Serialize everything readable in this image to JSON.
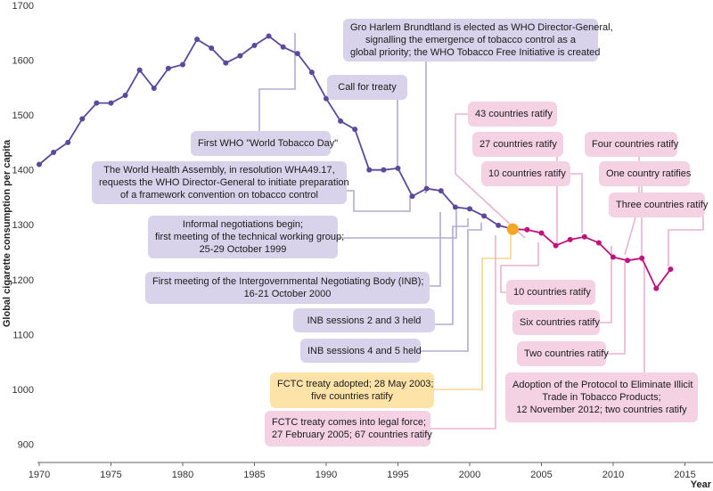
{
  "chart_data": {
    "type": "line",
    "ylabel": "Global cigarette consumption per capita",
    "xlabel": "Year",
    "xlim": [
      1970,
      2016
    ],
    "ylim": [
      850,
      1700
    ],
    "x_ticks": [
      "1970",
      "1975",
      "1980",
      "1985",
      "1990",
      "1995",
      "2000",
      "2005",
      "2010",
      "2015"
    ],
    "y_ticks": [
      "900",
      "1000",
      "1100",
      "1200",
      "1300",
      "1400",
      "1500",
      "1600",
      "1700"
    ],
    "grid": false,
    "series": [
      {
        "color": "#5b4a9b",
        "points": [
          [
            1970,
            1410
          ],
          [
            1971,
            1432
          ],
          [
            1972,
            1450
          ],
          [
            1973,
            1493
          ],
          [
            1974,
            1522
          ],
          [
            1975,
            1522
          ],
          [
            1976,
            1536
          ],
          [
            1977,
            1582
          ],
          [
            1978,
            1549
          ],
          [
            1979,
            1585
          ],
          [
            1980,
            1592
          ],
          [
            1981,
            1638
          ],
          [
            1982,
            1622
          ],
          [
            1983,
            1595
          ],
          [
            1984,
            1608
          ],
          [
            1985,
            1627
          ],
          [
            1986,
            1644
          ],
          [
            1987,
            1624
          ],
          [
            1988,
            1612
          ],
          [
            1989,
            1578
          ],
          [
            1990,
            1530
          ],
          [
            1991,
            1489
          ],
          [
            1992,
            1474
          ],
          [
            1993,
            1400
          ],
          [
            1994,
            1400
          ],
          [
            1995,
            1403
          ],
          [
            1996,
            1352
          ],
          [
            1997,
            1366
          ],
          [
            1998,
            1362
          ],
          [
            1999,
            1332
          ],
          [
            2000,
            1329
          ],
          [
            2001,
            1316
          ],
          [
            2002,
            1299
          ]
        ]
      },
      {
        "color": "#c0127f",
        "points": [
          [
            2003,
            1292
          ],
          [
            2004,
            1291
          ],
          [
            2005,
            1285
          ],
          [
            2006,
            1262
          ],
          [
            2007,
            1273
          ],
          [
            2008,
            1278
          ],
          [
            2009,
            1267
          ],
          [
            2010,
            1241
          ],
          [
            2011,
            1235
          ],
          [
            2012,
            1239
          ],
          [
            2013,
            1184
          ],
          [
            2014,
            1219
          ]
        ]
      }
    ],
    "highlight_point": {
      "x": 2003,
      "y": 1292,
      "color": "#f5a623"
    },
    "annotations": [
      {
        "id": "brundtland",
        "style": "purple",
        "lines": [
          "Gro Harlem Brundtland is elected as WHO Director-General,",
          "signalling the emergence of tobacco control as a",
          "global priority; the WHO Tobacco Free Initiative is created"
        ]
      },
      {
        "id": "call-treaty",
        "style": "purple",
        "lines": [
          "Call for treaty"
        ]
      },
      {
        "id": "tobacco-day",
        "style": "purple",
        "lines": [
          "First WHO \"World Tobacco Day\""
        ]
      },
      {
        "id": "wha",
        "style": "purple",
        "lines": [
          "The World Health Assembly, in resolution WHA49.17,",
          "requests the WHO Director-General to initiate preparation",
          "of a framework convention on tobacco control"
        ]
      },
      {
        "id": "informal",
        "style": "purple",
        "lines": [
          "Informal negotiations begin;",
          "first meeting of the technical working group;",
          "25-29 October 1999"
        ]
      },
      {
        "id": "inb-first",
        "style": "purple",
        "lines": [
          "First meeting of the Intergovernmental Negotiating Body (INB);",
          "16-21 October 2000"
        ]
      },
      {
        "id": "inb-23",
        "style": "purple",
        "lines": [
          "INB sessions 2 and 3 held"
        ]
      },
      {
        "id": "inb-45",
        "style": "purple",
        "lines": [
          "INB sessions 4 and 5 held"
        ]
      },
      {
        "id": "fctc-adopted",
        "style": "orange",
        "lines": [
          "FCTC treaty adopted; 28 May 2003;",
          "five countries ratify"
        ]
      },
      {
        "id": "fctc-force",
        "style": "pink",
        "lines": [
          "FCTC treaty comes into legal force;",
          "27 February 2005; 67 countries ratify"
        ]
      },
      {
        "id": "r43",
        "style": "pink",
        "lines": [
          "43 countries ratify"
        ]
      },
      {
        "id": "r27",
        "style": "pink",
        "lines": [
          "27 countries ratify"
        ]
      },
      {
        "id": "r10a",
        "style": "pink",
        "lines": [
          "10 countries ratify"
        ]
      },
      {
        "id": "r4",
        "style": "pink",
        "lines": [
          "Four countries ratify"
        ]
      },
      {
        "id": "r1",
        "style": "pink",
        "lines": [
          "One country ratifies"
        ]
      },
      {
        "id": "r3",
        "style": "pink",
        "lines": [
          "Three countries ratify"
        ]
      },
      {
        "id": "r10b",
        "style": "pink",
        "lines": [
          "10 countries ratify"
        ]
      },
      {
        "id": "r6",
        "style": "pink",
        "lines": [
          "Six countries ratify"
        ]
      },
      {
        "id": "r2",
        "style": "pink",
        "lines": [
          "Two countries ratify"
        ]
      },
      {
        "id": "protocol",
        "style": "pink",
        "lines": [
          "Adoption of the Protocol to Eliminate Illicit",
          "Trade in Tobacco Products;",
          "12 November 2012; two countries ratify"
        ]
      }
    ],
    "colors": {
      "purple_box": "#d8d3ea",
      "pink_box": "#f4d2e3",
      "orange_box": "#fde3a8",
      "purple_line": "#5b4a9b",
      "magenta_line": "#c0127f"
    }
  }
}
